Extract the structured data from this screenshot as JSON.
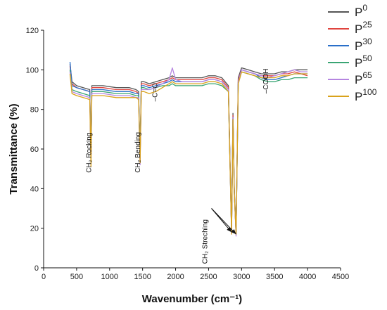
{
  "chart_data": {
    "type": "line",
    "title": "",
    "xlabel": "Wavenumber (cm⁻¹)",
    "ylabel": "Transmittance (%)",
    "xlim": [
      0,
      4500
    ],
    "ylim": [
      0,
      120
    ],
    "xticks": [
      0,
      500,
      1000,
      1500,
      2000,
      2500,
      3000,
      3500,
      4000,
      4500
    ],
    "yticks": [
      0,
      20,
      40,
      60,
      80,
      100,
      120
    ],
    "grid": false,
    "legend_position": "top-right-outside",
    "x": [
      400,
      430,
      500,
      600,
      700,
      718,
      730,
      760,
      900,
      1100,
      1300,
      1400,
      1440,
      1462,
      1480,
      1520,
      1600,
      1700,
      1800,
      1900,
      1950,
      2000,
      2100,
      2200,
      2300,
      2400,
      2500,
      2600,
      2700,
      2800,
      2848,
      2870,
      2890,
      2916,
      2950,
      3000,
      3100,
      3200,
      3300,
      3400,
      3500,
      3600,
      3700,
      3800,
      3900,
      4000
    ],
    "series": [
      {
        "name": "P0",
        "color": "#555555",
        "values": [
          103,
          94,
          92,
          91,
          90,
          55,
          92,
          92,
          92,
          91,
          91,
          90,
          89,
          55,
          94,
          94,
          93,
          94,
          95,
          96,
          97,
          96,
          96,
          96,
          96,
          96,
          97,
          97,
          96,
          92,
          19,
          78,
          40,
          18,
          96,
          101,
          100,
          99,
          98,
          98,
          98,
          99,
          99,
          100,
          100,
          100
        ]
      },
      {
        "name": "P25",
        "color": "#e0443e",
        "values": [
          102,
          93,
          91,
          90,
          89,
          54,
          91,
          91,
          91,
          90,
          90,
          89,
          88,
          54,
          93,
          93,
          92,
          93,
          94,
          95,
          96,
          95,
          95,
          95,
          95,
          95,
          96,
          96,
          95,
          91,
          18,
          77,
          39,
          17,
          95,
          100,
          99,
          98,
          97,
          97,
          97,
          98,
          98,
          99,
          98,
          97
        ]
      },
      {
        "name": "P30",
        "color": "#2a6fc9",
        "values": [
          104,
          92,
          91,
          90,
          89,
          55,
          90,
          90,
          90,
          89,
          89,
          88,
          88,
          55,
          92,
          92,
          91,
          92,
          93,
          94,
          95,
          94,
          94,
          94,
          94,
          94,
          95,
          95,
          94,
          90,
          18,
          76,
          38,
          17,
          94,
          100,
          99,
          98,
          96,
          95,
          95,
          96,
          97,
          98,
          98,
          98
        ]
      },
      {
        "name": "P50",
        "color": "#3aa574",
        "values": [
          100,
          90,
          89,
          88,
          87,
          56,
          89,
          89,
          89,
          88,
          88,
          87,
          87,
          56,
          91,
          91,
          90,
          91,
          92,
          92,
          93,
          92,
          92,
          92,
          92,
          92,
          93,
          93,
          92,
          89,
          18,
          75,
          38,
          17,
          93,
          99,
          98,
          97,
          95,
          94,
          94,
          95,
          95,
          96,
          96,
          96
        ]
      },
      {
        "name": "P65",
        "color": "#b585e0",
        "values": [
          99,
          89,
          88,
          87,
          86,
          52,
          88,
          88,
          88,
          87,
          87,
          86,
          86,
          52,
          90,
          90,
          90,
          91,
          93,
          95,
          101,
          95,
          94,
          94,
          94,
          94,
          95,
          95,
          94,
          90,
          17,
          76,
          38,
          16,
          94,
          100,
          99,
          98,
          97,
          96,
          97,
          98,
          99,
          100,
          99,
          99
        ]
      },
      {
        "name": "P100",
        "color": "#d9a21b",
        "values": [
          98,
          88,
          87,
          86,
          85,
          51,
          87,
          87,
          87,
          86,
          86,
          86,
          85,
          53,
          89,
          89,
          88,
          89,
          91,
          93,
          94,
          93,
          93,
          93,
          93,
          93,
          94,
          94,
          93,
          89,
          17,
          75,
          38,
          17,
          93,
          99,
          98,
          97,
          96,
          96,
          96,
          97,
          97,
          98,
          98,
          98
        ]
      }
    ],
    "annotations": [
      {
        "text": "CH₂ Rocking",
        "x": 720,
        "y": 48
      },
      {
        "text": "CH₂ Bending",
        "x": 1462,
        "y": 48
      },
      {
        "text": "–C=O",
        "x": 1720,
        "y": 84
      },
      {
        "text": "CH₂ Streching",
        "x": 2480,
        "y": 2
      },
      {
        "text": "–COOH",
        "x": 3400,
        "y": 88
      }
    ]
  }
}
